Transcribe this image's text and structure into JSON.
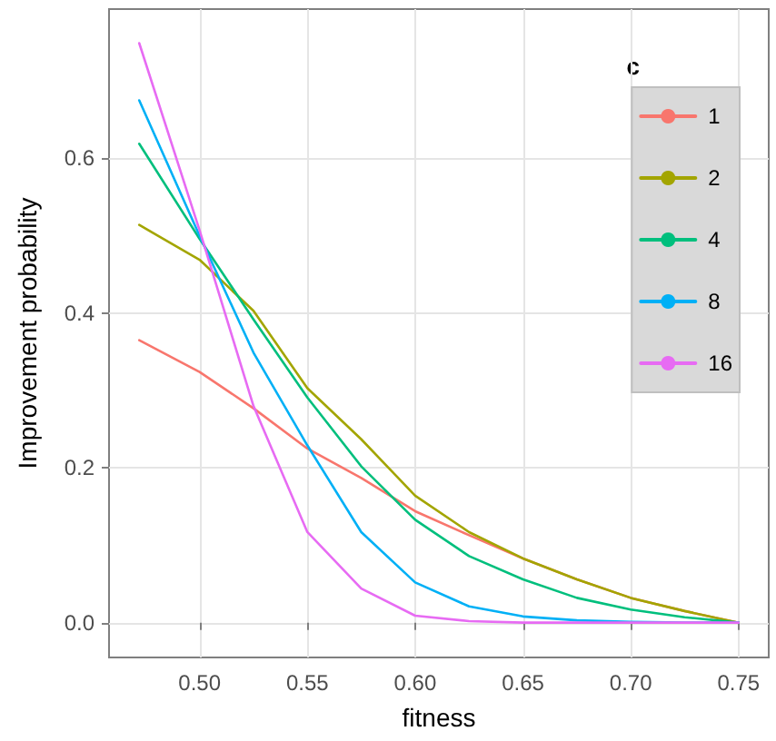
{
  "chart_data": {
    "type": "line",
    "xlabel": "fitness",
    "ylabel": "Improvement probability",
    "legend_title": "c",
    "x": [
      0.472,
      0.5,
      0.525,
      0.55,
      0.575,
      0.6,
      0.625,
      0.65,
      0.675,
      0.7,
      0.725,
      0.75
    ],
    "series": [
      {
        "name": "1",
        "color": "#f8766d",
        "values": [
          0.365,
          0.324,
          0.277,
          0.225,
          0.187,
          0.144,
          0.113,
          0.083,
          0.056,
          0.032,
          0.015,
          0
        ]
      },
      {
        "name": "2",
        "color": "#a3a500",
        "values": [
          0.514,
          0.469,
          0.403,
          0.303,
          0.237,
          0.164,
          0.117,
          0.083,
          0.056,
          0.032,
          0.015,
          0
        ]
      },
      {
        "name": "4",
        "color": "#00bf7d",
        "values": [
          0.619,
          0.496,
          0.392,
          0.291,
          0.202,
          0.133,
          0.086,
          0.056,
          0.032,
          0.017,
          0.007,
          0
        ]
      },
      {
        "name": "8",
        "color": "#00b0f6",
        "values": [
          0.675,
          0.5,
          0.349,
          0.229,
          0.117,
          0.052,
          0.021,
          0.008,
          0.003,
          0.001,
          0,
          0
        ]
      },
      {
        "name": "16",
        "color": "#e76bf3",
        "values": [
          0.749,
          0.507,
          0.28,
          0.117,
          0.044,
          0.009,
          0.002,
          0,
          0,
          0,
          0,
          0
        ]
      }
    ],
    "xlim": [
      0.458,
      0.764
    ],
    "xticks": [
      {
        "value": 0.5,
        "label": "0.50"
      },
      0.55,
      {
        "value": 0.6,
        "label": "0.60"
      },
      0.65,
      {
        "value": 0.7,
        "label": "0.70"
      },
      0.75
    ],
    "ylim": [
      -0.045,
      0.793
    ],
    "yticks": [
      {
        "value": 0,
        "label": "0.0"
      },
      0.2,
      0.4,
      0.6
    ],
    "grid": true,
    "legend": "top right",
    "marker": "none",
    "line_style": "solid"
  }
}
